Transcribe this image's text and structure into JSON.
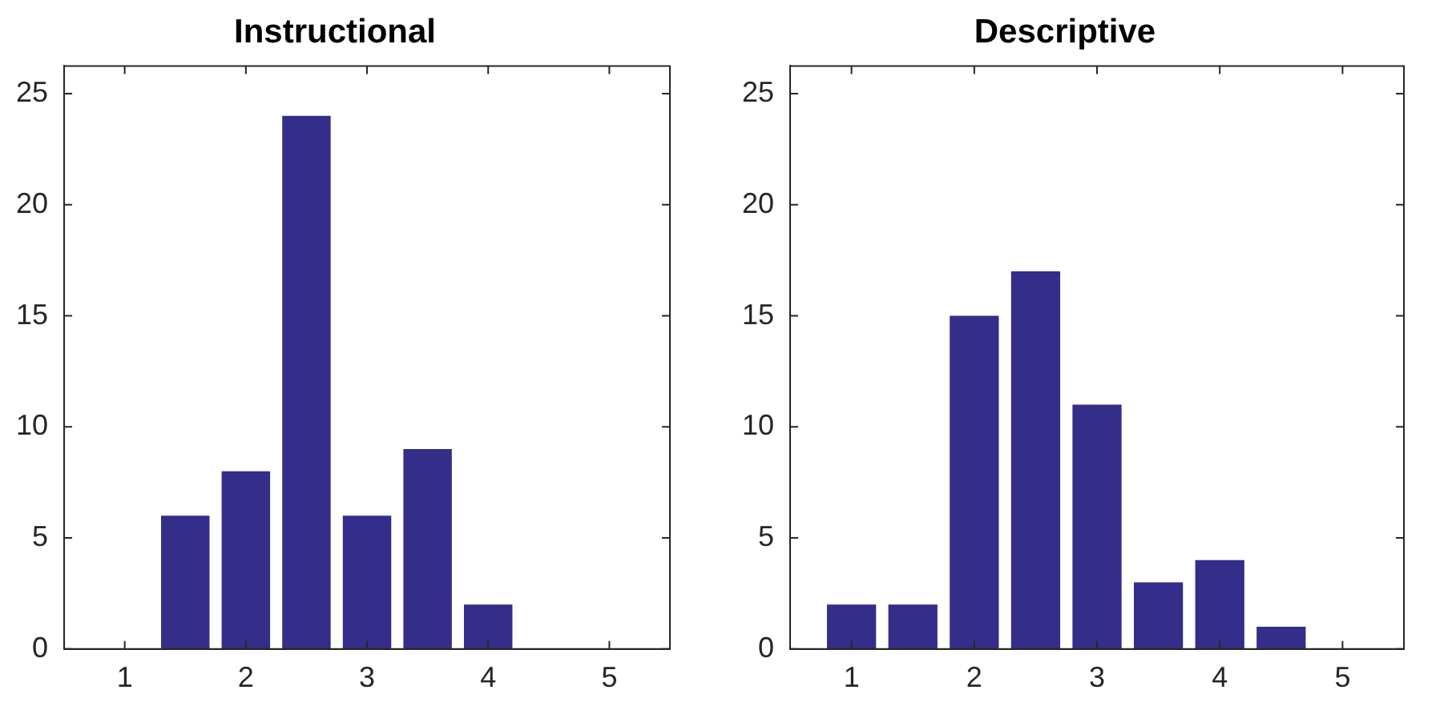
{
  "chart_data": [
    {
      "type": "bar",
      "title": "Instructional",
      "x": [
        1,
        1.5,
        2,
        2.5,
        3,
        3.5,
        4,
        4.5,
        5
      ],
      "values": [
        0,
        6,
        8,
        24,
        6,
        9,
        2,
        0,
        0
      ],
      "color": "#352d8a",
      "xlim": [
        0.5,
        5.5
      ],
      "xticks": [
        1,
        2,
        3,
        4,
        5
      ],
      "ylim": [
        0,
        26.25
      ],
      "yticks": [
        0,
        5,
        10,
        15,
        20,
        25
      ]
    },
    {
      "type": "bar",
      "title": "Descriptive",
      "x": [
        1,
        1.5,
        2,
        2.5,
        3,
        3.5,
        4,
        4.5,
        5
      ],
      "values": [
        2,
        2,
        15,
        17,
        11,
        3,
        4,
        1,
        0
      ],
      "color": "#352d8a",
      "xlim": [
        0.5,
        5.5
      ],
      "xticks": [
        1,
        2,
        3,
        4,
        5
      ],
      "ylim": [
        0,
        26.25
      ],
      "yticks": [
        0,
        5,
        10,
        15,
        20,
        25
      ]
    }
  ]
}
